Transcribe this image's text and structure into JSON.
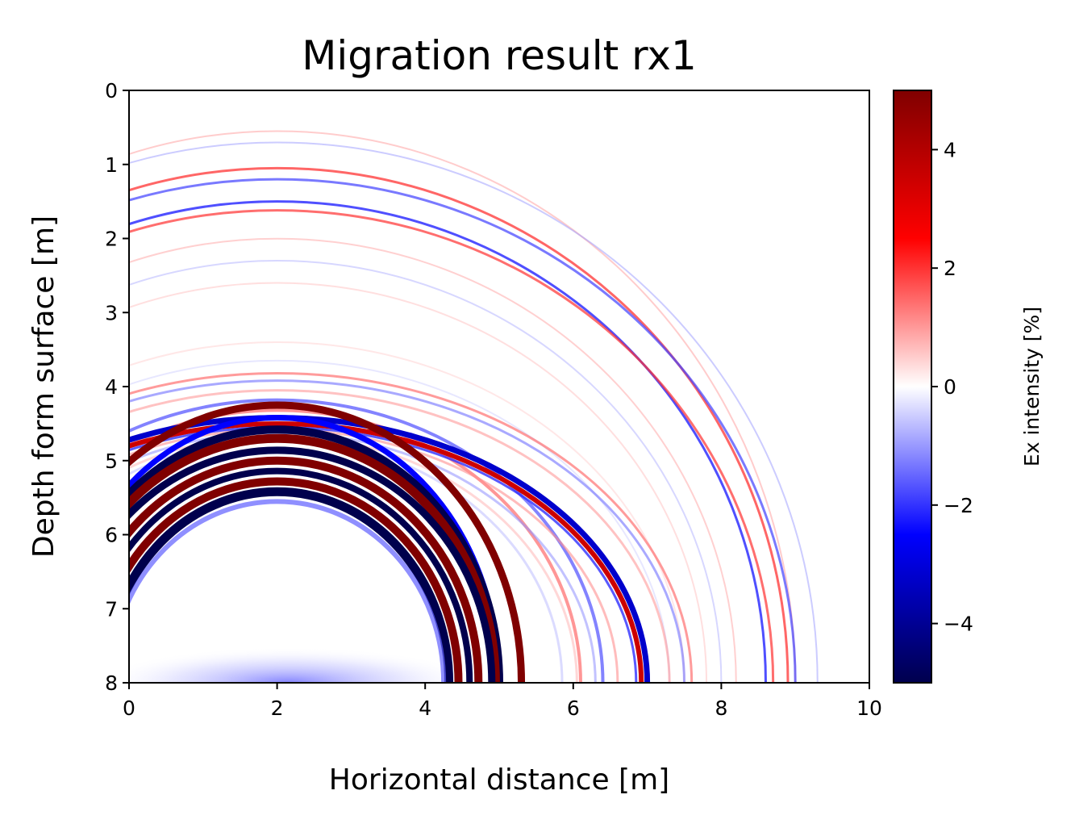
{
  "chart_data": {
    "type": "heatmap",
    "title": "Migration result rx1",
    "xlabel": "Horizontal distance [m]",
    "ylabel": "Depth form surface [m]",
    "xlim": [
      0,
      10
    ],
    "ylim": [
      8,
      0
    ],
    "x_ticks": [
      "0",
      "2",
      "4",
      "6",
      "8",
      "10"
    ],
    "y_ticks": [
      "0",
      "1",
      "2",
      "3",
      "4",
      "5",
      "6",
      "7",
      "8"
    ],
    "colorbar": {
      "label": "Ex intensity [%]",
      "range": [
        -5,
        5
      ],
      "ticks": [
        "4",
        "2",
        "0",
        "−2",
        "−4"
      ],
      "colormap": "seismic",
      "colors": [
        "#00004d",
        "#0000ff",
        "#ffffff",
        "#ff0000",
        "#800000"
      ]
    },
    "features": [
      {
        "kind": "hyperbola-arcs",
        "apex_x": 2.0,
        "apex_depths": [
          1.05,
          1.5
        ],
        "polarity": "alternating"
      },
      {
        "kind": "strong-reflection",
        "apex_x": 2.0,
        "apex_depths": [
          4.3,
          4.6,
          4.8,
          5.0,
          5.3
        ],
        "reach_x_at_bottom": [
          4.3,
          5.0
        ]
      },
      {
        "kind": "outer-arc",
        "apex_x": 2.0,
        "apex_depth": 4.4,
        "reach_x_at_bottom": 6.9
      }
    ]
  }
}
